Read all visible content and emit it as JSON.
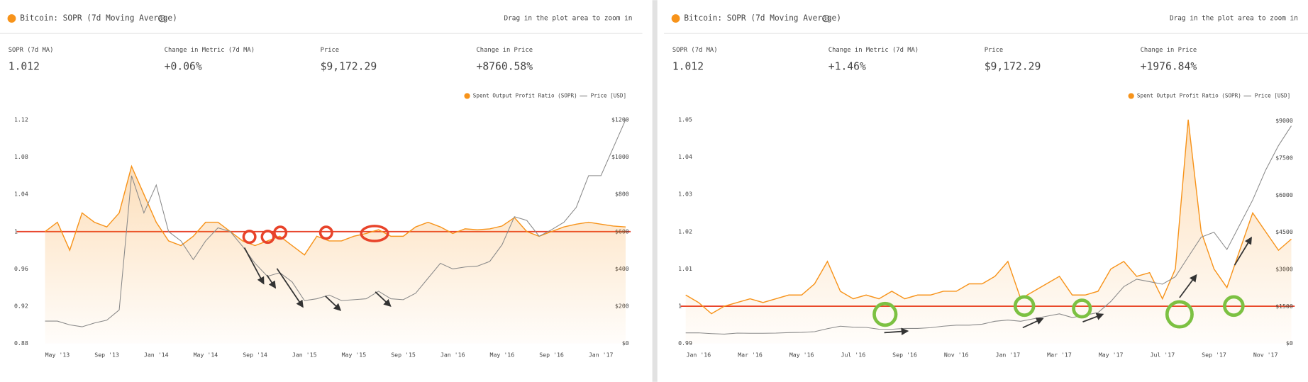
{
  "chart_data": [
    {
      "type": "line",
      "title": "Bitcoin: SOPR (7d Moving Average)",
      "hint": "Drag in the plot area to zoom in",
      "metrics": [
        {
          "label": "SOPR (7d MA)",
          "value": "1.012"
        },
        {
          "label": "Change in Metric (7d MA)",
          "value": "+0.06%"
        },
        {
          "label": "Price",
          "value": "$9,172.29"
        },
        {
          "label": "Change in Price",
          "value": "+8760.58%"
        }
      ],
      "categories": [
        null,
        "May '13",
        null,
        null,
        null,
        "Sep '13",
        null,
        null,
        null,
        "Jan '14",
        null,
        null,
        null,
        "May '14",
        null,
        null,
        null,
        "Sep '14",
        null,
        null,
        null,
        "Jan '15",
        null,
        null,
        null,
        "May '15",
        null,
        null,
        null,
        "Sep '15",
        null,
        null,
        null,
        "Jan '16",
        null,
        null,
        null,
        "May '16",
        null,
        null,
        null,
        "Sep '16",
        null,
        null,
        null,
        "Jan '17",
        null,
        null
      ],
      "series": [
        {
          "name": "Spent Output Profit Ratio (SOPR)",
          "color": "#f7931a",
          "values": [
            1.0,
            1.01,
            0.98,
            1.02,
            1.01,
            1.005,
            1.02,
            1.07,
            1.04,
            1.01,
            0.99,
            0.985,
            0.995,
            1.01,
            1.01,
            1.0,
            0.99,
            0.985,
            0.99,
            0.995,
            0.985,
            0.975,
            0.995,
            0.99,
            0.99,
            0.995,
            0.998,
            1.002,
            0.995,
            0.995,
            1.005,
            1.01,
            1.005,
            0.998,
            1.003,
            1.002,
            1.003,
            1.006,
            1.015,
            1.0,
            0.995,
            1.0,
            1.005,
            1.008,
            1.01,
            1.008,
            1.006,
            1.005
          ]
        },
        {
          "name": "Price [USD]",
          "color": "#8a8a8a",
          "axis": "y2",
          "values": [
            120,
            120,
            100,
            90,
            110,
            125,
            180,
            900,
            700,
            850,
            600,
            550,
            450,
            550,
            620,
            600,
            520,
            430,
            360,
            380,
            330,
            230,
            240,
            260,
            230,
            235,
            240,
            280,
            240,
            235,
            270,
            350,
            430,
            400,
            410,
            415,
            440,
            530,
            680,
            660,
            575,
            610,
            650,
            730,
            900,
            900,
            1050,
            1200
          ]
        }
      ],
      "ylim": [
        0.88,
        1.132
      ],
      "yticks": [
        0.88,
        0.92,
        0.96,
        1,
        1.04,
        1.08,
        1.12
      ],
      "y2lim": [
        0,
        1260
      ],
      "y2ticks": [
        {
          "value": 0,
          "label": "$0"
        },
        {
          "value": 200,
          "label": "$200"
        },
        {
          "value": 400,
          "label": "$400"
        },
        {
          "value": 600,
          "label": "$600"
        },
        {
          "value": 800,
          "label": "$800"
        },
        {
          "value": 1000,
          "label": "$1000"
        },
        {
          "value": 1200,
          "label": "$1200"
        }
      ]
    },
    {
      "type": "line",
      "title": "Bitcoin: SOPR (7d Moving Average)",
      "hint": "Drag in the plot area to zoom in",
      "metrics": [
        {
          "label": "SOPR (7d MA)",
          "value": "1.012"
        },
        {
          "label": "Change in Metric (7d MA)",
          "value": "+1.46%"
        },
        {
          "label": "Price",
          "value": "$9,172.29"
        },
        {
          "label": "Change in Price",
          "value": "+1976.84%"
        }
      ],
      "categories": [
        null,
        "Jan '16",
        null,
        null,
        null,
        "Mar '16",
        null,
        null,
        null,
        "May '16",
        null,
        null,
        null,
        "Jul '16",
        null,
        null,
        null,
        "Sep '16",
        null,
        null,
        null,
        "Nov '16",
        null,
        null,
        null,
        "Jan '17",
        null,
        null,
        null,
        "Mar '17",
        null,
        null,
        null,
        "May '17",
        null,
        null,
        null,
        "Jul '17",
        null,
        null,
        null,
        "Sep '17",
        null,
        null,
        null,
        "Nov '17",
        null,
        null
      ],
      "series": [
        {
          "name": "Spent Output Profit Ratio (SOPR)",
          "color": "#f7931a",
          "values": [
            1.003,
            1.001,
            0.998,
            1.0,
            1.001,
            1.002,
            1.001,
            1.002,
            1.003,
            1.003,
            1.006,
            1.012,
            1.004,
            1.002,
            1.003,
            1.002,
            1.004,
            1.002,
            1.003,
            1.003,
            1.004,
            1.004,
            1.006,
            1.006,
            1.008,
            1.012,
            1.002,
            1.004,
            1.006,
            1.008,
            1.003,
            1.003,
            1.004,
            1.01,
            1.012,
            1.008,
            1.009,
            1.002,
            1.01,
            1.05,
            1.02,
            1.01,
            1.005,
            1.015,
            1.025,
            1.02,
            1.015,
            1.018
          ]
        },
        {
          "name": "Price [USD]",
          "color": "#8a8a8a",
          "axis": "y2",
          "values": [
            430,
            430,
            400,
            380,
            420,
            415,
            415,
            420,
            440,
            450,
            480,
            600,
            700,
            660,
            650,
            580,
            575,
            610,
            610,
            640,
            700,
            740,
            740,
            780,
            900,
            950,
            900,
            1000,
            1100,
            1200,
            1050,
            1150,
            1250,
            1700,
            2300,
            2600,
            2500,
            2400,
            2700,
            3500,
            4300,
            4500,
            3800,
            4800,
            5800,
            7000,
            8000,
            8800
          ]
        }
      ],
      "ylim": [
        0.99,
        1.053
      ],
      "yticks": [
        0.99,
        1,
        1.01,
        1.02,
        1.03,
        1.04,
        1.05
      ],
      "y2lim": [
        0,
        9500
      ],
      "y2ticks": [
        {
          "value": 0,
          "label": "$0"
        },
        {
          "value": 1500,
          "label": "$1500"
        },
        {
          "value": 3000,
          "label": "$3000"
        },
        {
          "value": 4500,
          "label": "$4500"
        },
        {
          "value": 6000,
          "label": "$6000"
        },
        {
          "value": 7500,
          "label": "$7500"
        },
        {
          "value": 9000,
          "label": "$9000"
        }
      ]
    }
  ]
}
